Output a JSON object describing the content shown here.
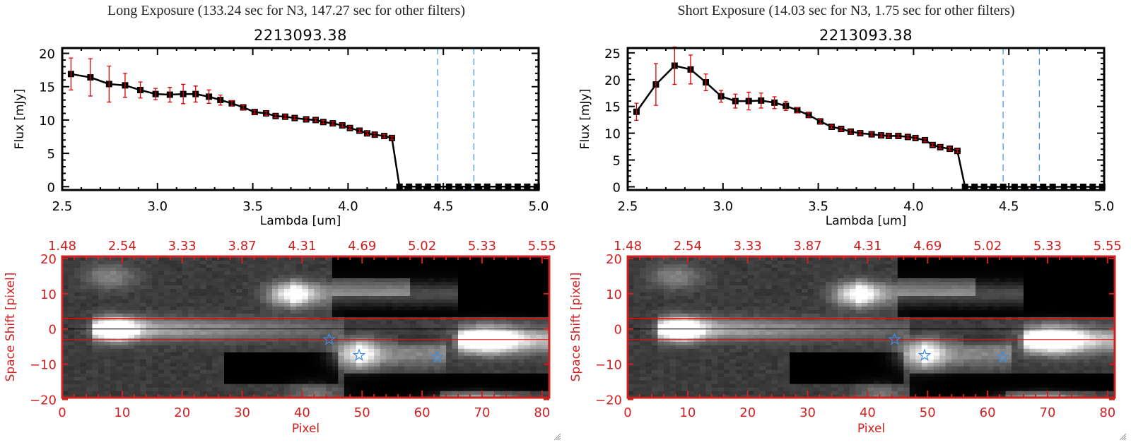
{
  "colors": {
    "axis": "#000000",
    "flux_line": "#000000",
    "error_bar": "#e00000",
    "zero_line": "#ff0000",
    "filter_line": "#3a8fe8",
    "image_axis": "#d02020",
    "aperture_line": "#ff0000",
    "center_line": "#000000",
    "star_marker": "#3a8fe8"
  },
  "panels": [
    {
      "exposure_title": "Long Exposure (133.24 sec for N3, 147.27 sec for other filters)",
      "object_title": "2213093.38",
      "grip_icon": "resize-grip-icon"
    },
    {
      "exposure_title": "Short Exposure (14.03 sec for N3, 1.75 sec for other filters)",
      "object_title": "2213093.38",
      "grip_icon": "resize-grip-icon"
    }
  ],
  "chart_data": [
    {
      "type": "line",
      "panel": "Long Exposure",
      "title": "2213093.38",
      "xlabel": "Lambda [um]",
      "ylabel": "Flux [mJy]",
      "xlim": [
        2.5,
        5.0
      ],
      "ylim": [
        -0.5,
        20.8
      ],
      "xticks": [
        "2.5",
        "3.0",
        "3.5",
        "4.0",
        "4.5",
        "5.0"
      ],
      "yticks": [
        "0",
        "5",
        "10",
        "15",
        "20"
      ],
      "x": [
        2.546,
        2.648,
        2.746,
        2.83,
        2.91,
        2.99,
        3.065,
        3.135,
        3.2,
        3.27,
        3.33,
        3.39,
        3.45,
        3.51,
        3.57,
        3.62,
        3.67,
        3.72,
        3.78,
        3.83,
        3.87,
        3.92,
        3.97,
        4.01,
        4.06,
        4.1,
        4.14,
        4.19,
        4.23,
        4.27,
        4.32,
        4.37,
        4.42,
        4.47,
        4.53,
        4.58,
        4.63,
        4.68,
        4.73,
        4.79,
        4.84,
        4.89,
        4.94,
        4.99
      ],
      "y": [
        16.9,
        16.4,
        15.4,
        15.2,
        14.5,
        13.9,
        13.8,
        13.9,
        13.9,
        13.5,
        13.0,
        12.5,
        11.9,
        11.2,
        11.0,
        10.6,
        10.5,
        10.3,
        10.1,
        10.0,
        9.7,
        9.5,
        9.2,
        8.8,
        8.4,
        8.0,
        7.8,
        7.6,
        7.3,
        0,
        0,
        0,
        0,
        0,
        0,
        0,
        0,
        0,
        0,
        0,
        0,
        0,
        0,
        0
      ],
      "yerr": [
        2.4,
        2.8,
        2.7,
        1.8,
        1.2,
        0.85,
        1.1,
        1.45,
        1.2,
        1.0,
        0.75,
        0.4,
        0.3,
        0.3,
        0.3,
        0.25,
        0.25,
        0.25,
        0.25,
        0.25,
        0.25,
        0.25,
        0.25,
        0.25,
        0.25,
        0.25,
        0.25,
        0.25,
        0.25,
        0,
        0,
        0,
        0,
        0,
        0,
        0,
        0,
        0,
        0,
        0,
        0,
        0,
        0,
        0
      ],
      "zero_line": 0,
      "vertical_lines": [
        4.47,
        4.66
      ]
    },
    {
      "type": "heatmap",
      "panel": "Long Exposure",
      "xlabel": "Pixel",
      "ylabel": "Space Shift [pixel]",
      "top_xlabel": "Lambda [um]",
      "xlim": [
        0,
        81.2
      ],
      "ylim": [
        -19.5,
        20.6
      ],
      "xticks": [
        "0",
        "10",
        "20",
        "30",
        "40",
        "50",
        "60",
        "70",
        "80"
      ],
      "top_xticks": [
        "1.48",
        "2.54",
        "3.33",
        "3.87",
        "4.31",
        "4.69",
        "5.02",
        "5.33",
        "5.55"
      ],
      "yticks": [
        "-20",
        "-10",
        "0",
        "10",
        "20"
      ],
      "aperture_lines": [
        3,
        -3
      ],
      "center_line": 0,
      "star_markers": [
        {
          "x": 44.5,
          "y": -3
        },
        {
          "x": 49.5,
          "y": -7.5
        },
        {
          "x": 62.5,
          "y": -8
        }
      ],
      "colormap": "grayscale"
    },
    {
      "type": "line",
      "panel": "Short Exposure",
      "title": "2213093.38",
      "xlabel": "Lambda [um]",
      "ylabel": "Flux [mJy]",
      "xlim": [
        2.5,
        5.0
      ],
      "ylim": [
        -0.6,
        25.9
      ],
      "xticks": [
        "2.5",
        "3.0",
        "3.5",
        "4.0",
        "4.5",
        "5.0"
      ],
      "yticks": [
        "0",
        "5",
        "10",
        "15",
        "20",
        "25"
      ],
      "x": [
        2.546,
        2.648,
        2.746,
        2.83,
        2.91,
        2.99,
        3.065,
        3.135,
        3.2,
        3.27,
        3.33,
        3.39,
        3.45,
        3.51,
        3.57,
        3.62,
        3.67,
        3.72,
        3.78,
        3.83,
        3.87,
        3.92,
        3.97,
        4.01,
        4.06,
        4.1,
        4.14,
        4.19,
        4.23,
        4.27,
        4.32,
        4.37,
        4.42,
        4.47,
        4.53,
        4.58,
        4.63,
        4.68,
        4.73,
        4.79,
        4.84,
        4.89,
        4.94,
        4.99
      ],
      "y": [
        14.0,
        19.1,
        22.6,
        21.9,
        19.5,
        16.9,
        16.0,
        16.0,
        16.1,
        15.7,
        15.1,
        14.3,
        13.4,
        12.2,
        11.2,
        10.8,
        10.3,
        10.0,
        9.8,
        9.6,
        9.5,
        9.5,
        9.3,
        9.1,
        8.7,
        7.8,
        7.4,
        7.1,
        6.7,
        0,
        0,
        0,
        0,
        0,
        0,
        0,
        0,
        0,
        0,
        0,
        0,
        0,
        0,
        0
      ],
      "yerr": [
        1.6,
        3.9,
        3.5,
        2.7,
        1.55,
        1.1,
        1.3,
        1.65,
        1.4,
        1.1,
        0.85,
        0.5,
        0.4,
        0.35,
        0.3,
        0.3,
        0.3,
        0.3,
        0.3,
        0.3,
        0.3,
        0.3,
        0.3,
        0.3,
        0.3,
        0.3,
        0.3,
        0.3,
        0.3,
        0,
        0,
        0,
        0,
        0,
        0,
        0,
        0,
        0,
        0,
        0,
        0,
        0,
        0,
        0
      ],
      "zero_line": 0,
      "vertical_lines": [
        4.47,
        4.66
      ]
    },
    {
      "type": "heatmap",
      "panel": "Short Exposure",
      "xlabel": "Pixel",
      "ylabel": "Space Shift [pixel]",
      "top_xlabel": "",
      "xlim": [
        0,
        81.2
      ],
      "ylim": [
        -19.5,
        20.6
      ],
      "xticks": [
        "0",
        "10",
        "20",
        "30",
        "40",
        "50",
        "60",
        "70",
        "80"
      ],
      "top_xticks": [
        "1.48",
        "2.54",
        "3.33",
        "3.87",
        "4.31",
        "4.69",
        "5.02",
        "5.33",
        "5.55"
      ],
      "yticks": [
        "-20",
        "-10",
        "0",
        "10",
        "20"
      ],
      "aperture_lines": [
        3,
        -3
      ],
      "center_line": 0,
      "star_markers": [
        {
          "x": 44.5,
          "y": -3
        },
        {
          "x": 49.5,
          "y": -7.5
        },
        {
          "x": 62.5,
          "y": -8
        }
      ],
      "colormap": "grayscale"
    }
  ]
}
